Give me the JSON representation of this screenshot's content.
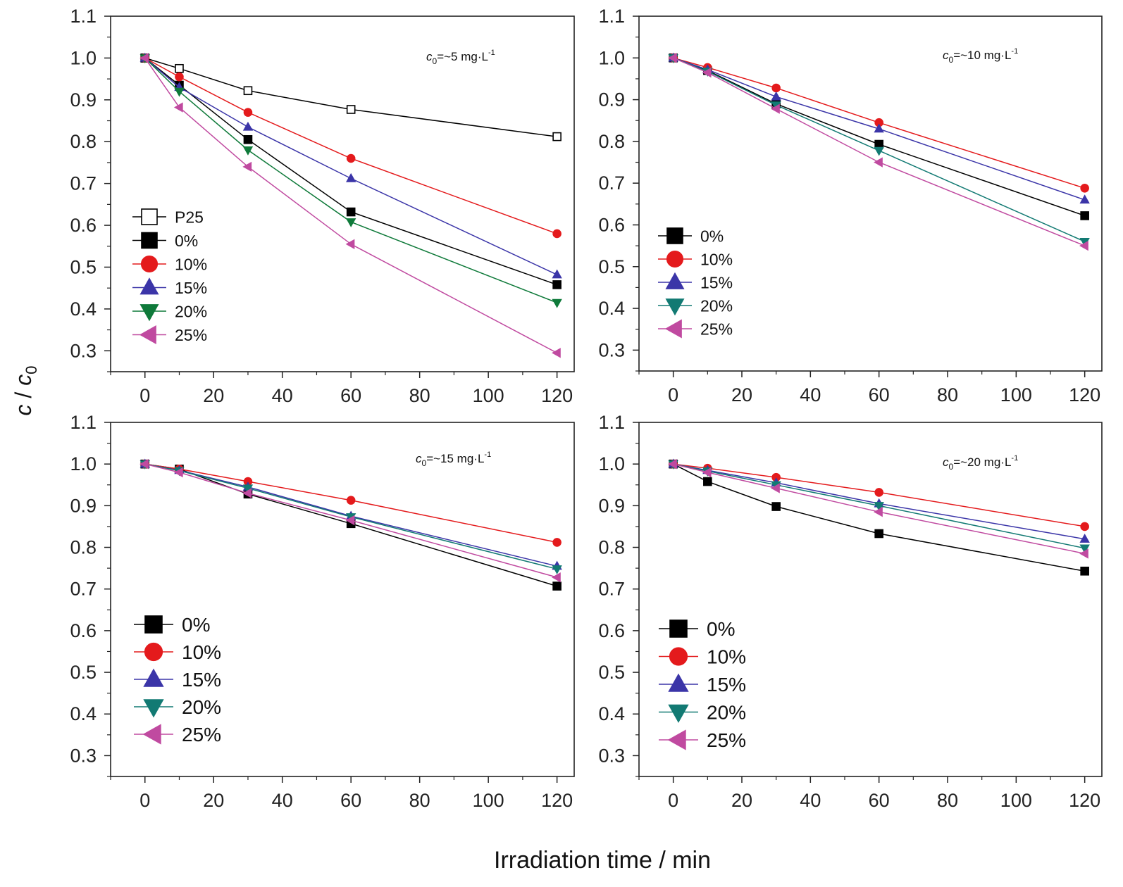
{
  "figure": {
    "xlabel": "Irradiation time / min",
    "ylabel_main": "c",
    "ylabel_sep": " / ",
    "ylabel_sub_base": "c",
    "ylabel_sub": "0"
  },
  "chart_data": [
    {
      "type": "line",
      "annotation": {
        "prefix": "c",
        "sub": "0",
        "text": "=~5 mg·L",
        "sup": "-1"
      },
      "xlim": [
        -10,
        125
      ],
      "ylim": [
        0.25,
        1.1
      ],
      "xticks": [
        0,
        20,
        40,
        60,
        80,
        100,
        120
      ],
      "yticks": [
        0.3,
        0.4,
        0.5,
        0.6,
        0.7,
        0.8,
        0.9,
        1.0,
        1.1
      ],
      "ytick_labels": [
        "0.3",
        "0.4",
        "0.5",
        "0.6",
        "0.7",
        "0.8",
        "0.9",
        "1.0",
        "1.1"
      ],
      "legend_position": "left",
      "x": [
        0,
        10,
        30,
        60,
        120
      ],
      "series": [
        {
          "name": "P25",
          "color": "#000000",
          "marker": "square-open",
          "values": [
            1.0,
            0.975,
            0.922,
            0.877,
            0.812
          ]
        },
        {
          "name": "0%",
          "color": "#000000",
          "marker": "square",
          "values": [
            1.0,
            0.935,
            0.805,
            0.632,
            0.458
          ]
        },
        {
          "name": "10%",
          "color": "#e41a1c",
          "marker": "circle",
          "values": [
            1.0,
            0.955,
            0.87,
            0.76,
            0.58
          ]
        },
        {
          "name": "15%",
          "color": "#3b35a8",
          "marker": "triangle-up",
          "values": [
            1.0,
            0.93,
            0.835,
            0.712,
            0.482
          ]
        },
        {
          "name": "20%",
          "color": "#0f7a3a",
          "marker": "triangle-down",
          "values": [
            1.0,
            0.92,
            0.78,
            0.608,
            0.415
          ]
        },
        {
          "name": "25%",
          "color": "#c04aa0",
          "marker": "triangle-left",
          "values": [
            1.0,
            0.882,
            0.74,
            0.555,
            0.295
          ]
        }
      ]
    },
    {
      "type": "line",
      "annotation": {
        "prefix": "c",
        "sub": "0",
        "text": "=~10 mg·L",
        "sup": "-1"
      },
      "xlim": [
        -10,
        125
      ],
      "ylim": [
        0.25,
        1.1
      ],
      "xticks": [
        0,
        20,
        40,
        60,
        80,
        100,
        120
      ],
      "yticks": [
        0.3,
        0.4,
        0.5,
        0.6,
        0.7,
        0.8,
        0.9,
        1.0,
        1.1
      ],
      "ytick_labels": [
        "0.3",
        "0.4",
        "0.5",
        "0.6",
        "0.7",
        "0.8",
        "0.9",
        "1.0",
        "1.1"
      ],
      "legend_position": "left",
      "x": [
        0,
        10,
        30,
        60,
        120
      ],
      "series": [
        {
          "name": "0%",
          "color": "#000000",
          "marker": "square",
          "values": [
            1.0,
            0.97,
            0.89,
            0.793,
            0.622
          ]
        },
        {
          "name": "10%",
          "color": "#e41a1c",
          "marker": "circle",
          "values": [
            1.0,
            0.977,
            0.928,
            0.845,
            0.688
          ]
        },
        {
          "name": "15%",
          "color": "#3b35a8",
          "marker": "triangle-up",
          "values": [
            1.0,
            0.972,
            0.907,
            0.83,
            0.66
          ]
        },
        {
          "name": "20%",
          "color": "#127a73",
          "marker": "triangle-down",
          "values": [
            1.0,
            0.968,
            0.887,
            0.778,
            0.56
          ]
        },
        {
          "name": "25%",
          "color": "#c04aa0",
          "marker": "triangle-left",
          "values": [
            1.0,
            0.965,
            0.878,
            0.75,
            0.55
          ]
        }
      ]
    },
    {
      "type": "line",
      "annotation": {
        "prefix": "c",
        "sub": "0",
        "text": "=~15 mg·L",
        "sup": "-1"
      },
      "xlim": [
        -10,
        125
      ],
      "ylim": [
        0.25,
        1.1
      ],
      "xticks": [
        0,
        20,
        40,
        60,
        80,
        100,
        120
      ],
      "yticks": [
        0.3,
        0.4,
        0.5,
        0.6,
        0.7,
        0.8,
        0.9,
        1.0,
        1.1
      ],
      "ytick_labels": [
        "0.3",
        "0.4",
        "0.5",
        "0.6",
        "0.7",
        "0.8",
        "0.9",
        "1.0",
        "1.1"
      ],
      "legend_position": "left",
      "x": [
        0,
        10,
        30,
        60,
        120
      ],
      "series": [
        {
          "name": "0%",
          "color": "#000000",
          "marker": "square",
          "values": [
            1.0,
            0.988,
            0.928,
            0.857,
            0.707
          ]
        },
        {
          "name": "10%",
          "color": "#e41a1c",
          "marker": "circle",
          "values": [
            1.0,
            0.988,
            0.958,
            0.913,
            0.812
          ]
        },
        {
          "name": "15%",
          "color": "#3b35a8",
          "marker": "triangle-up",
          "values": [
            1.0,
            0.985,
            0.945,
            0.875,
            0.755
          ]
        },
        {
          "name": "20%",
          "color": "#127a73",
          "marker": "triangle-down",
          "values": [
            1.0,
            0.984,
            0.942,
            0.873,
            0.748
          ]
        },
        {
          "name": "25%",
          "color": "#c04aa0",
          "marker": "triangle-left",
          "values": [
            1.0,
            0.98,
            0.93,
            0.865,
            0.728
          ]
        }
      ]
    },
    {
      "type": "line",
      "annotation": {
        "prefix": "c",
        "sub": "0",
        "text": "=~20 mg·L",
        "sup": "-1"
      },
      "xlim": [
        -10,
        125
      ],
      "ylim": [
        0.25,
        1.1
      ],
      "xticks": [
        0,
        20,
        40,
        60,
        80,
        100,
        120
      ],
      "yticks": [
        0.3,
        0.4,
        0.5,
        0.6,
        0.7,
        0.8,
        0.9,
        1.0,
        1.1
      ],
      "ytick_labels": [
        "0.3",
        "0.4",
        "0.5",
        "0.6",
        "0.7",
        "0.8",
        "0.9",
        "1.0",
        "1.1"
      ],
      "legend_position": "left",
      "x": [
        0,
        10,
        30,
        60,
        120
      ],
      "series": [
        {
          "name": "0%",
          "color": "#000000",
          "marker": "square",
          "values": [
            1.0,
            0.958,
            0.898,
            0.833,
            0.743
          ]
        },
        {
          "name": "10%",
          "color": "#e41a1c",
          "marker": "circle",
          "values": [
            1.0,
            0.99,
            0.968,
            0.932,
            0.85
          ]
        },
        {
          "name": "15%",
          "color": "#3b35a8",
          "marker": "triangle-up",
          "values": [
            1.0,
            0.985,
            0.955,
            0.905,
            0.82
          ]
        },
        {
          "name": "20%",
          "color": "#127a73",
          "marker": "triangle-down",
          "values": [
            1.0,
            0.983,
            0.95,
            0.9,
            0.798
          ]
        },
        {
          "name": "25%",
          "color": "#c04aa0",
          "marker": "triangle-left",
          "values": [
            1.0,
            0.98,
            0.942,
            0.885,
            0.785
          ]
        }
      ]
    }
  ]
}
